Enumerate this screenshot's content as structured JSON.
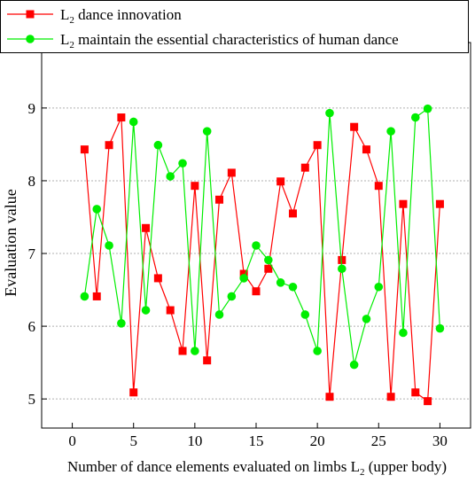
{
  "chart_data": {
    "type": "line",
    "title": "",
    "xlabel": "Number of dance elements evaluated on limbs L",
    "xlabel_sub": "2",
    "xlabel_suffix": " (upper body)",
    "ylabel": "Evaluation value",
    "xlim": [
      -2.5,
      32.5
    ],
    "ylim": [
      4.6,
      9.9
    ],
    "xticks": [
      0,
      5,
      10,
      15,
      20,
      25,
      30
    ],
    "yticks": [
      5,
      6,
      7,
      8,
      9
    ],
    "grid": "horizontal dotted",
    "legend_position": "top-left",
    "x": [
      1,
      2,
      3,
      4,
      5,
      6,
      7,
      8,
      9,
      10,
      11,
      12,
      13,
      14,
      15,
      16,
      17,
      18,
      19,
      20,
      21,
      22,
      23,
      24,
      25,
      26,
      27,
      28,
      29,
      30
    ],
    "series": [
      {
        "name_prefix": "L",
        "name_sub": "2",
        "name_suffix": " dance innovation",
        "color": "#ff0000",
        "marker": "square",
        "values": [
          8.43,
          6.41,
          8.49,
          8.87,
          5.09,
          7.35,
          6.66,
          6.22,
          5.66,
          7.93,
          5.53,
          7.74,
          8.11,
          6.72,
          6.48,
          6.79,
          7.99,
          7.55,
          8.18,
          8.49,
          5.03,
          6.91,
          8.74,
          8.43,
          7.93,
          5.03,
          7.68,
          5.09,
          4.97,
          7.68
        ]
      },
      {
        "name_prefix": "L",
        "name_sub": "2",
        "name_suffix": " maintain the essential characteristics of human dance",
        "color": "#00ee00",
        "marker": "circle",
        "values": [
          6.41,
          7.61,
          7.11,
          6.04,
          8.81,
          6.22,
          8.49,
          8.06,
          8.24,
          5.66,
          8.68,
          6.16,
          6.41,
          6.66,
          7.11,
          6.91,
          6.6,
          6.54,
          6.16,
          5.66,
          8.93,
          6.79,
          5.47,
          6.1,
          6.54,
          8.68,
          5.91,
          8.87,
          8.99,
          5.97
        ]
      }
    ]
  }
}
